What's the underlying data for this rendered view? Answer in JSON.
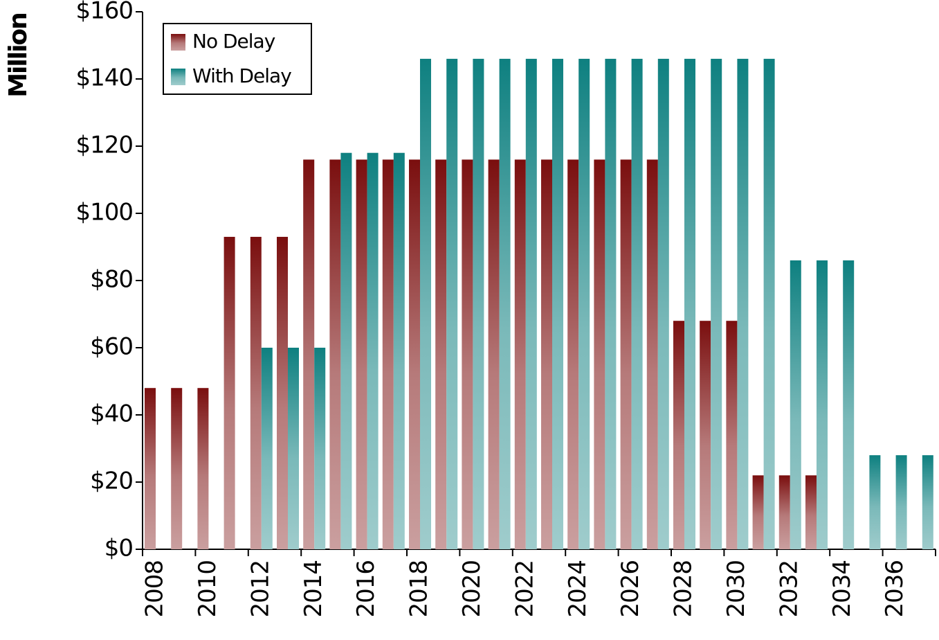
{
  "chart_data": {
    "type": "bar",
    "y_label": "Million",
    "categories": [
      "2008",
      null,
      "2010",
      null,
      "2012",
      null,
      "2014",
      null,
      "2016",
      null,
      "2018",
      null,
      "2020",
      null,
      "2022",
      null,
      "2024",
      null,
      "2026",
      null,
      "2028",
      null,
      "2030",
      null,
      "2032",
      null,
      "2034",
      null,
      "2036",
      null
    ],
    "series": [
      {
        "name": "No Delay",
        "color": "#7a0e0e",
        "values": [
          48,
          48,
          48,
          93,
          93,
          93,
          116,
          116,
          116,
          116,
          116,
          116,
          116,
          116,
          116,
          116,
          116,
          116,
          116,
          116,
          68,
          68,
          68,
          22,
          22,
          22,
          0,
          0,
          0,
          0
        ]
      },
      {
        "name": "With Delay",
        "color": "#0e8080",
        "values": [
          0,
          0,
          0,
          0,
          60,
          60,
          60,
          118,
          118,
          118,
          146,
          146,
          146,
          146,
          146,
          146,
          146,
          146,
          146,
          146,
          146,
          146,
          146,
          146,
          86,
          86,
          86,
          28,
          28,
          28
        ]
      }
    ],
    "ylim": [
      0,
      160
    ],
    "yticks": [
      {
        "value": 0,
        "label": "$0"
      },
      {
        "value": 20,
        "label": "$20"
      },
      {
        "value": 40,
        "label": "$40"
      },
      {
        "value": 60,
        "label": "$60"
      },
      {
        "value": 80,
        "label": "$80"
      },
      {
        "value": 100,
        "label": "$100"
      },
      {
        "value": 120,
        "label": "$120"
      },
      {
        "value": 140,
        "label": "$140"
      },
      {
        "value": 160,
        "label": "$160"
      }
    ],
    "legend": "upper left",
    "grid": false
  }
}
